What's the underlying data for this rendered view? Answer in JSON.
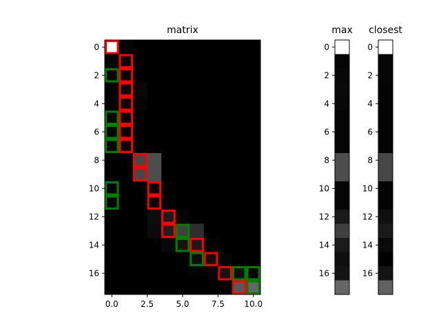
{
  "chart_data": [
    {
      "type": "heatmap",
      "title": "matrix",
      "xlabel": "",
      "ylabel": "",
      "rows": 18,
      "cols": 11,
      "x_ticks": [
        "0.0",
        "2.5",
        "5.0",
        "7.5",
        "10.0"
      ],
      "x_tick_values": [
        0,
        2.5,
        5,
        7.5,
        10
      ],
      "y_ticks": [
        "0",
        "2",
        "4",
        "6",
        "8",
        "10",
        "12",
        "14",
        "16"
      ],
      "y_tick_values": [
        0,
        2,
        4,
        6,
        8,
        10,
        12,
        14,
        16
      ],
      "colormap": "gray",
      "values": [
        [
          1.0,
          0.02,
          0,
          0,
          0,
          0,
          0,
          0,
          0,
          0,
          0
        ],
        [
          0.02,
          0.02,
          0,
          0,
          0,
          0,
          0,
          0,
          0,
          0,
          0
        ],
        [
          0.02,
          0.02,
          0,
          0,
          0,
          0,
          0,
          0,
          0,
          0,
          0
        ],
        [
          0.01,
          0.04,
          0.03,
          0,
          0,
          0,
          0,
          0,
          0,
          0,
          0
        ],
        [
          0.01,
          0.03,
          0.02,
          0,
          0,
          0,
          0,
          0,
          0,
          0,
          0
        ],
        [
          0.01,
          0.02,
          0,
          0,
          0,
          0,
          0,
          0,
          0,
          0,
          0
        ],
        [
          0.01,
          0.02,
          0,
          0,
          0,
          0,
          0,
          0,
          0,
          0,
          0
        ],
        [
          0.01,
          0.02,
          0,
          0,
          0,
          0,
          0,
          0,
          0,
          0,
          0
        ],
        [
          0,
          0,
          0.28,
          0.3,
          0,
          0,
          0,
          0,
          0,
          0,
          0
        ],
        [
          0,
          0,
          0.28,
          0.3,
          0,
          0,
          0,
          0,
          0,
          0,
          0
        ],
        [
          0.01,
          0,
          0,
          0.02,
          0,
          0,
          0,
          0,
          0,
          0,
          0
        ],
        [
          0.01,
          0,
          0,
          0.02,
          0.01,
          0,
          0,
          0,
          0,
          0,
          0
        ],
        [
          0,
          0,
          0,
          0.05,
          0.1,
          0.02,
          0,
          0,
          0,
          0,
          0
        ],
        [
          0,
          0,
          0,
          0.04,
          0.12,
          0.25,
          0.18,
          0,
          0,
          0,
          0
        ],
        [
          0,
          0,
          0,
          0,
          0.03,
          0.08,
          0.1,
          0.02,
          0,
          0,
          0
        ],
        [
          0,
          0,
          0,
          0,
          0,
          0,
          0.05,
          0.06,
          0.02,
          0,
          0
        ],
        [
          0,
          0,
          0,
          0,
          0,
          0,
          0,
          0,
          0.08,
          0.06,
          0.02
        ],
        [
          0,
          0,
          0,
          0,
          0,
          0,
          0,
          0,
          0,
          0.35,
          0.4
        ]
      ],
      "highlight_red": [
        [
          0,
          0
        ],
        [
          1,
          1
        ],
        [
          2,
          1
        ],
        [
          3,
          1
        ],
        [
          4,
          1
        ],
        [
          5,
          1
        ],
        [
          6,
          1
        ],
        [
          7,
          1
        ],
        [
          8,
          2
        ],
        [
          9,
          2
        ],
        [
          10,
          3
        ],
        [
          11,
          3
        ],
        [
          12,
          4
        ],
        [
          13,
          4
        ],
        [
          14,
          6
        ],
        [
          15,
          7
        ],
        [
          16,
          8
        ],
        [
          17,
          9
        ]
      ],
      "highlight_green": [
        [
          2,
          0
        ],
        [
          5,
          0
        ],
        [
          6,
          0
        ],
        [
          7,
          0
        ],
        [
          10,
          0
        ],
        [
          11,
          0
        ],
        [
          13,
          5
        ],
        [
          14,
          5
        ],
        [
          15,
          6
        ],
        [
          16,
          9
        ],
        [
          16,
          10
        ],
        [
          17,
          10
        ]
      ]
    },
    {
      "type": "heatmap",
      "title": "max",
      "rows": 18,
      "cols": 1,
      "colormap": "gray",
      "y_ticks": [
        "0",
        "2",
        "4",
        "6",
        "8",
        "10",
        "12",
        "14",
        "16"
      ],
      "y_tick_values": [
        0,
        2,
        4,
        6,
        8,
        10,
        12,
        14,
        16
      ],
      "values": [
        1.0,
        0.02,
        0.03,
        0.04,
        0.03,
        0.02,
        0.02,
        0.02,
        0.3,
        0.3,
        0.02,
        0.02,
        0.1,
        0.25,
        0.1,
        0.06,
        0.08,
        0.4
      ]
    },
    {
      "type": "heatmap",
      "title": "closest",
      "rows": 18,
      "cols": 1,
      "colormap": "gray",
      "y_ticks": [
        "0",
        "2",
        "4",
        "6",
        "8",
        "10",
        "12",
        "14",
        "16"
      ],
      "y_tick_values": [
        0,
        2,
        4,
        6,
        8,
        10,
        12,
        14,
        16
      ],
      "values": [
        1.0,
        0.02,
        0.02,
        0.01,
        0.01,
        0.01,
        0.01,
        0.01,
        0.28,
        0.28,
        0.01,
        0.01,
        0.06,
        0.1,
        0.04,
        0.0,
        0.08,
        0.38
      ]
    }
  ]
}
